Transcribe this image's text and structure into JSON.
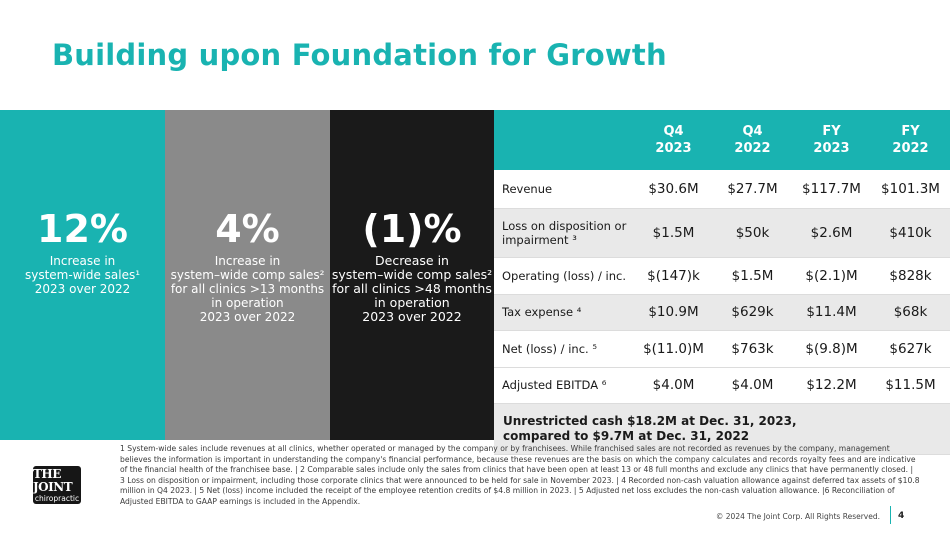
{
  "title": "Building upon Foundation for Growth",
  "colors": {
    "accent": "#19b3b1",
    "gray_panel": "#8a8a8a",
    "dark_panel": "#1a1a1a",
    "row_shade": "#e9e9e9"
  },
  "panels": [
    {
      "value": "12%",
      "lines": [
        "Increase in",
        "system-wide sales¹",
        "2023 over 2022"
      ]
    },
    {
      "value": "4%",
      "lines": [
        "Increase in",
        "system–wide comp sales²",
        "for all clinics >13 months",
        "in operation",
        "2023 over 2022"
      ]
    },
    {
      "value": "(1)%",
      "lines": [
        "Decrease in",
        "system–wide comp sales²",
        "for all clinics >48 months",
        "in operation",
        "2023 over 2022"
      ]
    }
  ],
  "table": {
    "headers": [
      {
        "line1": "Q4",
        "line2": "2023"
      },
      {
        "line1": "Q4",
        "line2": "2022"
      },
      {
        "line1": "FY",
        "line2": "2023"
      },
      {
        "line1": "FY",
        "line2": "2022"
      }
    ],
    "rows": [
      {
        "label": "Revenue",
        "values": [
          "$30.6M",
          "$27.7M",
          "$117.7M",
          "$101.3M"
        ]
      },
      {
        "label": "Loss on disposition or impairment ³",
        "values": [
          "$1.5M",
          "$50k",
          "$2.6M",
          "$410k"
        ]
      },
      {
        "label": "Operating (loss) / inc.",
        "values": [
          "$(147)k",
          "$1.5M",
          "$(2.1)M",
          "$828k"
        ]
      },
      {
        "label": "Tax expense ⁴",
        "values": [
          "$10.9M",
          "$629k",
          "$11.4M",
          "$68k"
        ]
      },
      {
        "label": "Net (loss) / inc. ⁵",
        "values": [
          "$(11.0)M",
          "$763k",
          "$(9.8)M",
          "$627k"
        ]
      },
      {
        "label": "Adjusted EBITDA ⁶",
        "values": [
          "$4.0M",
          "$4.0M",
          "$12.2M",
          "$11.5M"
        ]
      }
    ],
    "cash_note_line1": "Unrestricted cash $18.2M at Dec. 31, 2023,",
    "cash_note_line2": "compared to $9.7M at Dec. 31, 2022"
  },
  "logo": {
    "line1": "THE JOINT",
    "line2": "chiropractic"
  },
  "footnote": "1 System-wide sales include revenues at all clinics, whether operated or managed by the company or by franchisees. While franchised sales are not recorded as revenues by the company, management believes the information is important in understanding the company's financial performance, because these revenues are the basis on which the company calculates and records royalty fees and are indicative of the financial health of the franchisee base. | 2 Comparable sales include only the sales from clinics that have been open at least 13 or 48 full months and exclude any clinics that have permanently closed. | 3 Loss on disposition or impairment, including those corporate clinics that were announced to be held for sale in November 2023. | 4 Recorded non-cash valuation allowance against deferred tax assets of $10.8 million in Q4 2023. | 5 Net (loss) income included the receipt of the employee retention credits of $4.8 million in 2023. | 5 Adjusted net loss excludes the non-cash valuation allowance. |6 Reconciliation of Adjusted EBITDA to GAAP earnings is included in the Appendix.",
  "copyright": "© 2024 The Joint Corp. All Rights Reserved.",
  "page_number": "4"
}
